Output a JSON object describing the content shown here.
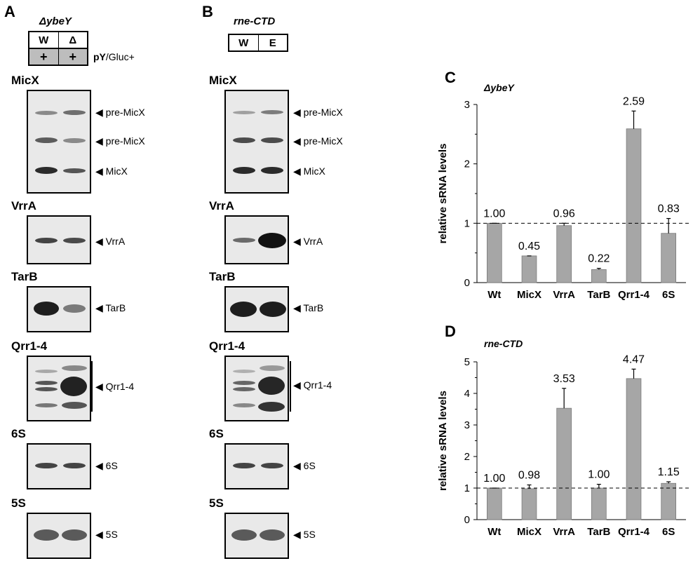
{
  "panels": {
    "A": {
      "letter": "A",
      "strain": "ΔybeY",
      "genotype": [
        "W",
        "Δ"
      ],
      "condition": [
        "+",
        "+"
      ],
      "condition_label_bold": "pY",
      "condition_label_rest": "/Gluc+",
      "blots": [
        {
          "title": "MicX",
          "bands": [
            "pre-MicX",
            "pre-MicX",
            "MicX"
          ]
        },
        {
          "title": "VrrA",
          "bands": [
            "VrrA"
          ]
        },
        {
          "title": "TarB",
          "bands": [
            "TarB"
          ]
        },
        {
          "title": "Qrr1-4",
          "bands": [
            "Qrr1-4"
          ]
        },
        {
          "title": "6S",
          "bands": [
            "6S"
          ]
        },
        {
          "title": "5S",
          "bands": [
            "5S"
          ]
        }
      ]
    },
    "B": {
      "letter": "B",
      "strain": "rne-CTD",
      "genotype": [
        "W",
        "E"
      ],
      "blots": [
        {
          "title": "MicX",
          "bands": [
            "pre-MicX",
            "pre-MicX",
            "MicX"
          ]
        },
        {
          "title": "VrrA",
          "bands": [
            "VrrA"
          ]
        },
        {
          "title": "TarB",
          "bands": [
            "TarB"
          ]
        },
        {
          "title": "Qrr1-4",
          "bands": [
            "Qrr1-4"
          ]
        },
        {
          "title": "6S",
          "bands": [
            "6S"
          ]
        },
        {
          "title": "5S",
          "bands": [
            "5S"
          ]
        }
      ]
    }
  },
  "arrow_glyph": "◀",
  "chart_data": [
    {
      "panel": "C",
      "type": "bar",
      "title": "ΔybeY",
      "ylabel": "relative sRNA levels",
      "categories": [
        "Wt",
        "MicX",
        "VrrA",
        "TarB",
        "Qrr1-4",
        "6S"
      ],
      "values": [
        1.0,
        0.45,
        0.96,
        0.22,
        2.59,
        0.83
      ],
      "value_labels": [
        "1.00",
        "0.45",
        "0.96",
        "0.22",
        "2.59",
        "0.83"
      ],
      "errors": [
        0.0,
        0.0,
        0.04,
        0.02,
        0.3,
        0.25
      ],
      "ylim": [
        0,
        3
      ],
      "yticks": [
        "0",
        "1",
        "2",
        "3"
      ],
      "reference_line": 1,
      "bar_color": "#a6a6a6"
    },
    {
      "panel": "D",
      "type": "bar",
      "title": "rne-CTD",
      "ylabel": "relative sRNA levels",
      "categories": [
        "Wt",
        "MicX",
        "VrrA",
        "TarB",
        "Qrr1-4",
        "6S"
      ],
      "values": [
        1.0,
        0.98,
        3.53,
        1.0,
        4.47,
        1.15
      ],
      "value_labels": [
        "1.00",
        "0.98",
        "3.53",
        "1.00",
        "4.47",
        "1.15"
      ],
      "errors": [
        0.0,
        0.12,
        0.63,
        0.12,
        0.3,
        0.05
      ],
      "ylim": [
        0,
        5
      ],
      "yticks": [
        "0",
        "1",
        "2",
        "3",
        "4",
        "5"
      ],
      "reference_line": 1,
      "bar_color": "#a6a6a6"
    }
  ]
}
